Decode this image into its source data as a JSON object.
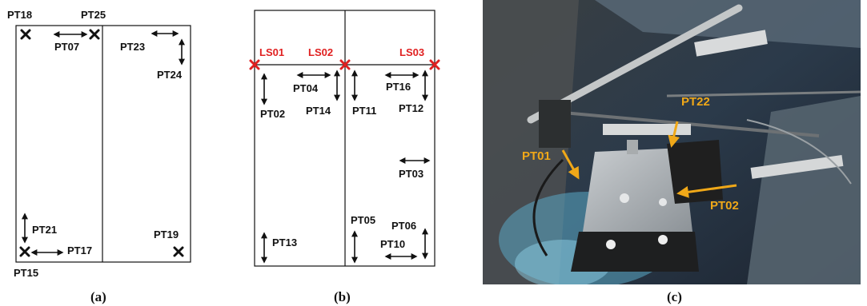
{
  "panel_a": {
    "labels": {
      "pt18": "PT18",
      "pt25": "PT25",
      "pt07": "PT07",
      "pt23": "PT23",
      "pt24": "PT24",
      "pt21": "PT21",
      "pt17": "PT17",
      "pt19": "PT19",
      "pt15": "PT15"
    },
    "caption": "(a)"
  },
  "panel_b": {
    "labels": {
      "ls01": "LS01",
      "ls02": "LS02",
      "ls03": "LS03",
      "pt04": "PT04",
      "pt16": "PT16",
      "pt02": "PT02",
      "pt14": "PT14",
      "pt11": "PT11",
      "pt12": "PT12",
      "pt03": "PT03",
      "pt05": "PT05",
      "pt06": "PT06",
      "pt13": "PT13",
      "pt10": "PT10"
    },
    "caption": "(b)"
  },
  "panel_c": {
    "labels": {
      "pt22": "PT22",
      "pt01": "PT01",
      "pt02": "PT02"
    },
    "caption": "(c)"
  },
  "colors": {
    "sensor_line": "#111111",
    "laser_marker": "#e02020",
    "photo_label": "#f0a818"
  }
}
